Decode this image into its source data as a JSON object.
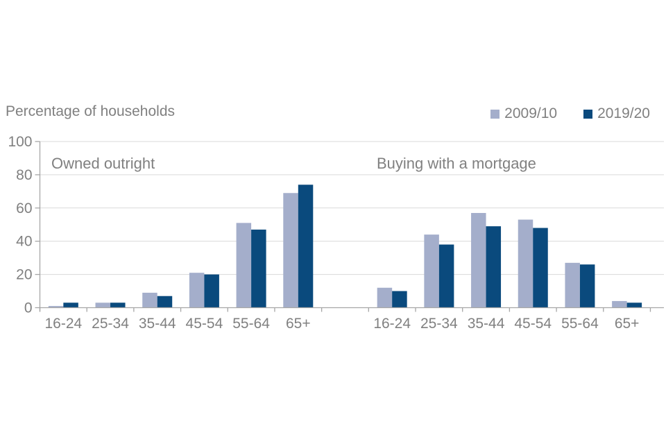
{
  "title": "Percentage of households",
  "legend": {
    "items": [
      {
        "label": "2009/10",
        "color": "#a4aecb"
      },
      {
        "label": "2019/20",
        "color": "#0a4a7d"
      }
    ]
  },
  "chart_data": {
    "type": "bar",
    "title": "Percentage of households",
    "xlabel": "",
    "ylabel": "",
    "ylim": [
      0,
      100
    ],
    "yticks": [
      0,
      20,
      40,
      60,
      80,
      100
    ],
    "grid": true,
    "legend_position": "top-right",
    "panels": [
      {
        "title": "Owned outright",
        "categories": [
          "16-24",
          "25-34",
          "35-44",
          "45-54",
          "55-64",
          "65+"
        ],
        "series": [
          {
            "name": "2009/10",
            "values": [
              1,
              3,
              9,
              21,
              51,
              69
            ]
          },
          {
            "name": "2019/20",
            "values": [
              3,
              3,
              7,
              20,
              47,
              74
            ]
          }
        ]
      },
      {
        "title": "Buying with a mortgage",
        "categories": [
          "16-24",
          "25-34",
          "35-44",
          "45-54",
          "55-64",
          "65+"
        ],
        "series": [
          {
            "name": "2009/10",
            "values": [
              12,
              44,
              57,
              53,
              27,
              4
            ]
          },
          {
            "name": "2019/20",
            "values": [
              10,
              38,
              49,
              48,
              26,
              3
            ]
          }
        ]
      }
    ],
    "series_colors": {
      "2009/10": "#a4aecb",
      "2019/20": "#0a4a7d"
    },
    "colors": {
      "gridline": "#d9d9d9",
      "axis": "#a6a6a6",
      "text": "#808080",
      "background": "#ffffff"
    }
  }
}
